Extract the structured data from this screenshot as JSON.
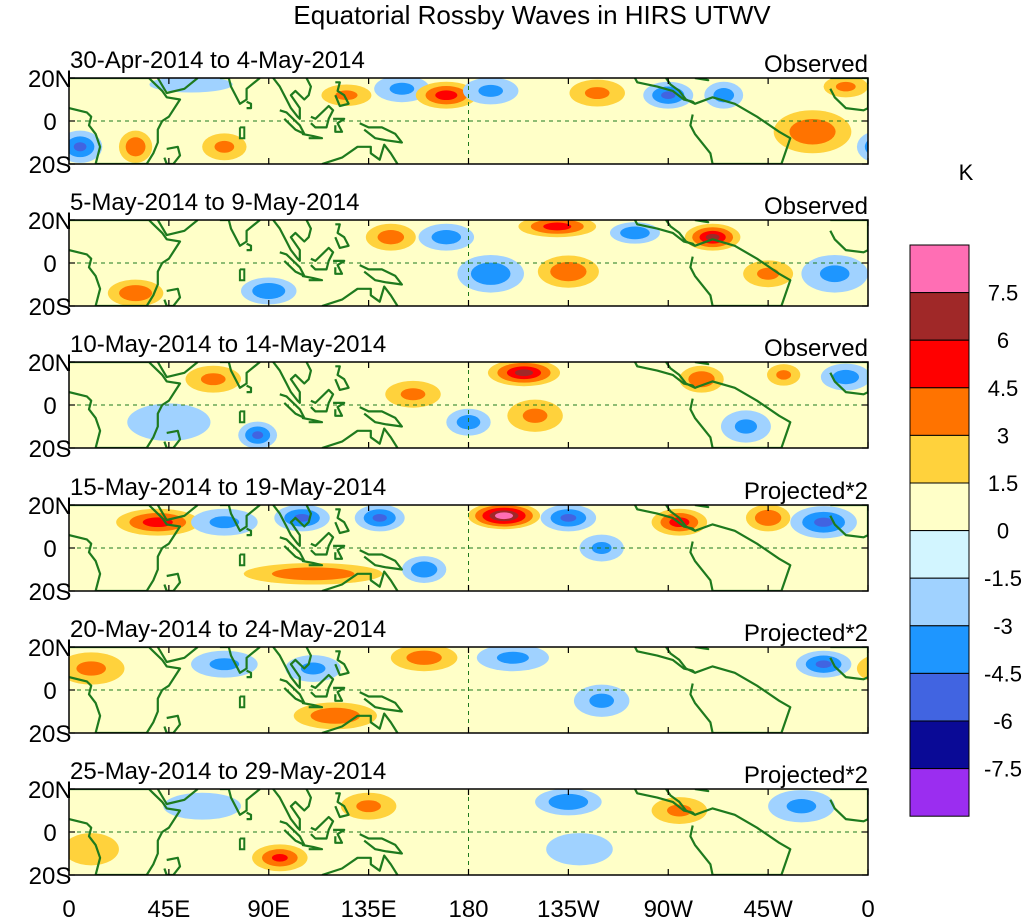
{
  "chart_data": {
    "type": "heatmap",
    "title": "Equatorial Rossby Waves in HIRS UTWV",
    "x_ticks": [
      "0",
      "45E",
      "90E",
      "135E",
      "180",
      "135W",
      "90W",
      "45W",
      "0"
    ],
    "y_ticks": [
      "20N",
      "0",
      "20S"
    ],
    "xlim_deg": [
      0,
      360
    ],
    "ylim_deg": [
      -20,
      20
    ],
    "panels": [
      {
        "date_range": "30-Apr-2014 to 4-May-2014",
        "label": "Observed",
        "features": [
          {
            "lon": 5,
            "lat": -12,
            "value": -4.5,
            "rx": 8,
            "ry": 6
          },
          {
            "lon": 30,
            "lat": -12,
            "value": 4,
            "rx": 6,
            "ry": 6
          },
          {
            "lon": 55,
            "lat": 17,
            "value": -2,
            "rx": 15,
            "ry": 3
          },
          {
            "lon": 70,
            "lat": -12,
            "value": 3,
            "rx": 8,
            "ry": 5
          },
          {
            "lon": 125,
            "lat": 12,
            "value": 3,
            "rx": 9,
            "ry": 4
          },
          {
            "lon": 150,
            "lat": 15,
            "value": -3,
            "rx": 10,
            "ry": 5
          },
          {
            "lon": 170,
            "lat": 12,
            "value": 5,
            "rx": 11,
            "ry": 5
          },
          {
            "lon": 190,
            "lat": 14,
            "value": -3,
            "rx": 10,
            "ry": 5
          },
          {
            "lon": 238,
            "lat": 13,
            "value": 3,
            "rx": 10,
            "ry": 5
          },
          {
            "lon": 270,
            "lat": 12,
            "value": -4.5,
            "rx": 9,
            "ry": 5
          },
          {
            "lon": 295,
            "lat": 12,
            "value": -3.5,
            "rx": 7,
            "ry": 5
          },
          {
            "lon": 335,
            "lat": -5,
            "value": 4,
            "rx": 14,
            "ry": 8
          },
          {
            "lon": 350,
            "lat": 16,
            "value": 3,
            "rx": 8,
            "ry": 4
          }
        ]
      },
      {
        "date_range": "5-May-2014 to 9-May-2014",
        "label": "Observed",
        "features": [
          {
            "lon": 30,
            "lat": -14,
            "value": 4,
            "rx": 10,
            "ry": 5
          },
          {
            "lon": 90,
            "lat": -13,
            "value": -4,
            "rx": 10,
            "ry": 5
          },
          {
            "lon": 145,
            "lat": 12,
            "value": 3.5,
            "rx": 9,
            "ry": 5
          },
          {
            "lon": 170,
            "lat": 12,
            "value": -3.5,
            "rx": 10,
            "ry": 5
          },
          {
            "lon": 190,
            "lat": -5,
            "value": -4,
            "rx": 12,
            "ry": 7
          },
          {
            "lon": 220,
            "lat": 17,
            "value": 5,
            "rx": 14,
            "ry": 4
          },
          {
            "lon": 225,
            "lat": -4,
            "value": 4,
            "rx": 11,
            "ry": 6
          },
          {
            "lon": 255,
            "lat": 14,
            "value": -4,
            "rx": 9,
            "ry": 4
          },
          {
            "lon": 290,
            "lat": 12,
            "value": 6,
            "rx": 10,
            "ry": 5
          },
          {
            "lon": 315,
            "lat": -5,
            "value": 3,
            "rx": 9,
            "ry": 5
          },
          {
            "lon": 345,
            "lat": -5,
            "value": -3,
            "rx": 12,
            "ry": 7
          }
        ]
      },
      {
        "date_range": "10-May-2014 to 14-May-2014",
        "label": "Observed",
        "features": [
          {
            "lon": 45,
            "lat": -8,
            "value": -2.5,
            "rx": 15,
            "ry": 7
          },
          {
            "lon": 65,
            "lat": 12,
            "value": 3,
            "rx": 10,
            "ry": 5
          },
          {
            "lon": 85,
            "lat": -14,
            "value": -4.5,
            "rx": 7,
            "ry": 5
          },
          {
            "lon": 155,
            "lat": 5,
            "value": 3,
            "rx": 10,
            "ry": 5
          },
          {
            "lon": 180,
            "lat": -8,
            "value": -3.5,
            "rx": 8,
            "ry": 5
          },
          {
            "lon": 205,
            "lat": 15,
            "value": 6,
            "rx": 13,
            "ry": 5
          },
          {
            "lon": 210,
            "lat": -5,
            "value": 3,
            "rx": 10,
            "ry": 6
          },
          {
            "lon": 285,
            "lat": 12,
            "value": 4,
            "rx": 8,
            "ry": 5
          },
          {
            "lon": 305,
            "lat": -10,
            "value": -3,
            "rx": 9,
            "ry": 6
          },
          {
            "lon": 322,
            "lat": 14,
            "value": 3,
            "rx": 6,
            "ry": 4
          },
          {
            "lon": 350,
            "lat": 13,
            "value": -3.5,
            "rx": 9,
            "ry": 5
          }
        ]
      },
      {
        "date_range": "15-May-2014 to 19-May-2014",
        "label": "Projected*2",
        "features": [
          {
            "lon": 40,
            "lat": 12,
            "value": 5,
            "rx": 15,
            "ry": 5
          },
          {
            "lon": 70,
            "lat": 12,
            "value": -3,
            "rx": 12,
            "ry": 5
          },
          {
            "lon": 105,
            "lat": 14,
            "value": -4.5,
            "rx": 10,
            "ry": 5
          },
          {
            "lon": 140,
            "lat": 14,
            "value": -4.5,
            "rx": 9,
            "ry": 5
          },
          {
            "lon": 110,
            "lat": -12,
            "value": 4,
            "rx": 25,
            "ry": 4
          },
          {
            "lon": 160,
            "lat": -10,
            "value": -4,
            "rx": 8,
            "ry": 5
          },
          {
            "lon": 196,
            "lat": 15,
            "value": 7.8,
            "rx": 13,
            "ry": 5
          },
          {
            "lon": 225,
            "lat": 14,
            "value": -4.5,
            "rx": 10,
            "ry": 5
          },
          {
            "lon": 240,
            "lat": 0,
            "value": -3,
            "rx": 8,
            "ry": 5
          },
          {
            "lon": 275,
            "lat": 12,
            "value": 5,
            "rx": 10,
            "ry": 5
          },
          {
            "lon": 315,
            "lat": 14,
            "value": 4,
            "rx": 8,
            "ry": 5
          },
          {
            "lon": 340,
            "lat": 12,
            "value": -4.5,
            "rx": 12,
            "ry": 6
          }
        ]
      },
      {
        "date_range": "20-May-2014 to 24-May-2014",
        "label": "Projected*2",
        "features": [
          {
            "lon": 10,
            "lat": 10,
            "value": 3,
            "rx": 12,
            "ry": 6
          },
          {
            "lon": 70,
            "lat": 12,
            "value": -3,
            "rx": 12,
            "ry": 5
          },
          {
            "lon": 110,
            "lat": 10,
            "value": -3,
            "rx": 10,
            "ry": 5
          },
          {
            "lon": 120,
            "lat": -12,
            "value": 4,
            "rx": 15,
            "ry": 5
          },
          {
            "lon": 160,
            "lat": 15,
            "value": 3.5,
            "rx": 12,
            "ry": 5
          },
          {
            "lon": 200,
            "lat": 15,
            "value": -3,
            "rx": 13,
            "ry": 5
          },
          {
            "lon": 240,
            "lat": -5,
            "value": -3,
            "rx": 10,
            "ry": 6
          },
          {
            "lon": 340,
            "lat": 12,
            "value": -4.5,
            "rx": 10,
            "ry": 5
          }
        ]
      },
      {
        "date_range": "25-May-2014 to 29-May-2014",
        "label": "Projected*2",
        "features": [
          {
            "lon": 60,
            "lat": 12,
            "value": -2,
            "rx": 14,
            "ry": 5
          },
          {
            "lon": 95,
            "lat": -12,
            "value": 4.5,
            "rx": 10,
            "ry": 5
          },
          {
            "lon": 135,
            "lat": 12,
            "value": 3,
            "rx": 10,
            "ry": 5
          },
          {
            "lon": 225,
            "lat": 14,
            "value": -4,
            "rx": 12,
            "ry": 5
          },
          {
            "lon": 230,
            "lat": -8,
            "value": -2,
            "rx": 12,
            "ry": 6
          },
          {
            "lon": 275,
            "lat": 10,
            "value": 3,
            "rx": 10,
            "ry": 5
          },
          {
            "lon": 330,
            "lat": 12,
            "value": -3,
            "rx": 12,
            "ry": 6
          },
          {
            "lon": 10,
            "lat": -8,
            "value": 2,
            "rx": 10,
            "ry": 6
          }
        ]
      }
    ],
    "colorbar": {
      "unit": "K",
      "levels": [
        "7.5",
        "6",
        "4.5",
        "3",
        "1.5",
        "0",
        "-1.5",
        "-3",
        "-4.5",
        "-6",
        "-7.5"
      ],
      "level_values": [
        7.5,
        6,
        4.5,
        3,
        1.5,
        0,
        -1.5,
        -3,
        -4.5,
        -6,
        -7.5
      ],
      "colors": [
        "#ff6eb4",
        "#a02828",
        "#ff0000",
        "#ff7300",
        "#ffd23c",
        "#ffffc8",
        "#d2f5ff",
        "#a0d2ff",
        "#1e96ff",
        "#4164e1",
        "#0a0a96",
        "#9b2df0"
      ]
    }
  }
}
